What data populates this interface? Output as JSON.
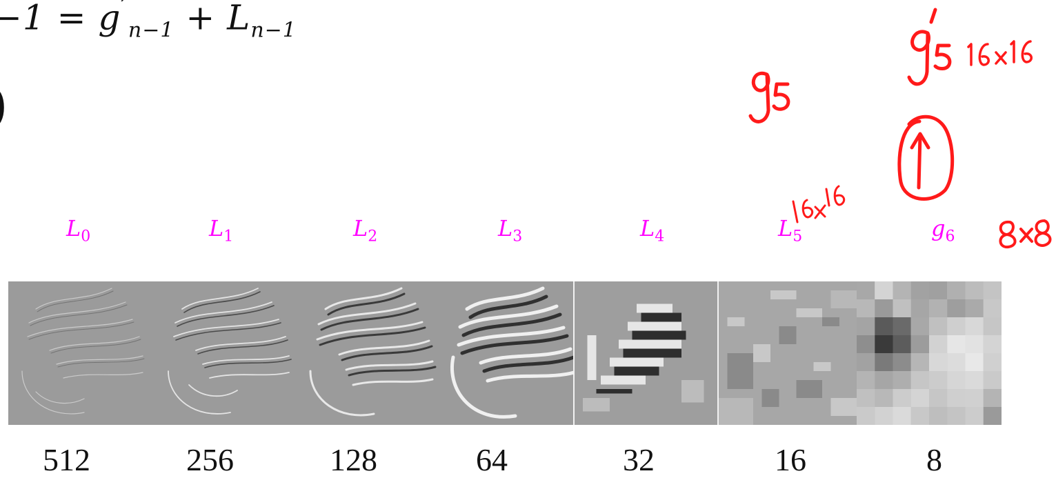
{
  "formula": {
    "lead": "−1",
    "eq": " = ",
    "g": "g",
    "prime": "′",
    "n1": "n−1",
    "plus": " + ",
    "L": "L",
    "n2": "n−1"
  },
  "paren": ")",
  "levels": [
    {
      "name": "L",
      "sub": "0"
    },
    {
      "name": "L",
      "sub": "1"
    },
    {
      "name": "L",
      "sub": "2"
    },
    {
      "name": "L",
      "sub": "3"
    },
    {
      "name": "L",
      "sub": "4"
    },
    {
      "name": "L",
      "sub": "5"
    },
    {
      "name": "g",
      "sub": "6"
    }
  ],
  "sizes": [
    "512",
    "256",
    "128",
    "64",
    "32",
    "16",
    "8"
  ],
  "annotations": {
    "g5": "g5",
    "g5_prime": "g′5",
    "size_16a": "16×16",
    "size_16b": "16x16",
    "size_8": "8×8",
    "upsample_arrow": "↑"
  },
  "colors": {
    "label_magenta": "#ff00ff",
    "ink_red": "#ff1a1a",
    "strip_gray": "#9a9a9a"
  }
}
